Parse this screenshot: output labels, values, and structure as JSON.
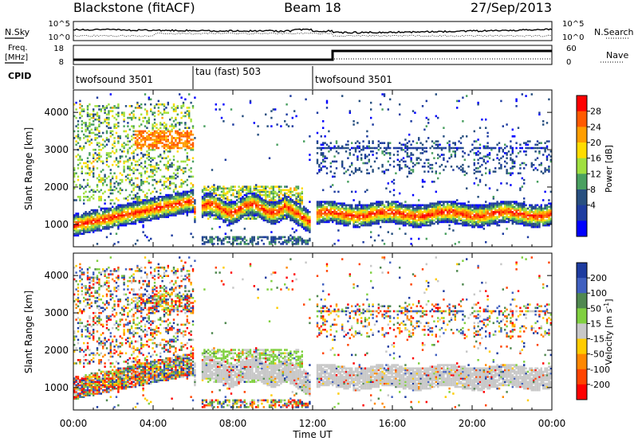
{
  "header": {
    "station": "Blackstone (fitACF)",
    "beam": "Beam 18",
    "date": "27/Sep/2013"
  },
  "noise_panel": {
    "left_label": "N.Sky",
    "right_label": "N.Search",
    "left_ticks": [
      "10^5",
      "10^0"
    ],
    "right_ticks": [
      "10^5",
      "10^0"
    ]
  },
  "freq_panel": {
    "left_label": "Freq. [MHz]",
    "left_label_lines": [
      "Freq.",
      "[MHz]"
    ],
    "right_label": "Nave",
    "left_ticks": [
      "18",
      "8"
    ],
    "right_ticks": [
      "60",
      "0"
    ]
  },
  "cpid": {
    "label": "CPID",
    "segments": [
      {
        "name": "twofsound 3501",
        "start_h": 0,
        "end_h": 6
      },
      {
        "name": "tau (fast) 503",
        "start_h": 6,
        "end_h": 12
      },
      {
        "name": "twofsound 3501",
        "start_h": 12,
        "end_h": 24
      }
    ]
  },
  "x_axis": {
    "title": "Time UT",
    "ticks": [
      "00:00",
      "04:00",
      "08:00",
      "12:00",
      "16:00",
      "20:00",
      "00:00"
    ],
    "tick_hours": [
      0,
      4,
      8,
      12,
      16,
      20,
      24
    ]
  },
  "chart_data": [
    {
      "type": "heatmap",
      "quantity": "power",
      "ylabel": "Slant Range [km]",
      "yticks": [
        1000,
        2000,
        3000,
        4000
      ],
      "ylim": [
        400,
        4600
      ],
      "xlim_hours": [
        0,
        24
      ],
      "colorbar": {
        "label": "Power [dB]",
        "ticks": [
          "28",
          "24",
          "20",
          "16",
          "12",
          "8",
          "4"
        ],
        "colors": [
          "#ff0000",
          "#ff5a00",
          "#ff9e00",
          "#ffdc00",
          "#a0e040",
          "#4aa060",
          "#285080",
          "#1e3ca0",
          "#0000ff"
        ]
      },
      "features": [
        {
          "desc": "main echo band",
          "start_h": 0,
          "end_h": 6,
          "range_start_km": 950,
          "range_end_km": 1600,
          "level": "high"
        },
        {
          "desc": "main echo band",
          "start_h": 12,
          "end_h": 24,
          "range_start_km": 1150,
          "range_end_km": 1350,
          "level": "high"
        },
        {
          "desc": "evening echoes",
          "start_h": 6.5,
          "end_h": 10,
          "range_start_km": 1300,
          "range_end_km": 1700,
          "level": "medium"
        },
        {
          "desc": "far echoes",
          "start_h": 0.5,
          "end_h": 6,
          "range_start_km": 3000,
          "range_end_km": 4100,
          "level": "medium"
        }
      ]
    },
    {
      "type": "heatmap",
      "quantity": "velocity",
      "ylabel": "Slant Range [km]",
      "yticks": [
        1000,
        2000,
        3000,
        4000
      ],
      "ylim": [
        400,
        4600
      ],
      "xlim_hours": [
        0,
        24
      ],
      "colorbar": {
        "label": "Velocity [m s-1]",
        "label_main": "Velocity [m s",
        "label_sup": "-1",
        "label_end": "]",
        "ticks": [
          "200",
          "100",
          "50",
          "15",
          "-15",
          "-50",
          "-100",
          "-200"
        ],
        "colors": [
          "#1e3ca0",
          "#4060c0",
          "#508850",
          "#80d040",
          "#c8c8c8",
          "#ffcc00",
          "#ff8800",
          "#ff4400",
          "#ff0000"
        ]
      },
      "features": [
        {
          "desc": "ground scatter band",
          "start_h": 6,
          "end_h": 24,
          "range_start_km": 1000,
          "range_end_km": 1600,
          "value": "near 0"
        },
        {
          "desc": "scattered echoes",
          "start_h": 0,
          "end_h": 24,
          "range_start_km": 1000,
          "range_end_km": 4100,
          "value": "mixed"
        }
      ]
    }
  ]
}
